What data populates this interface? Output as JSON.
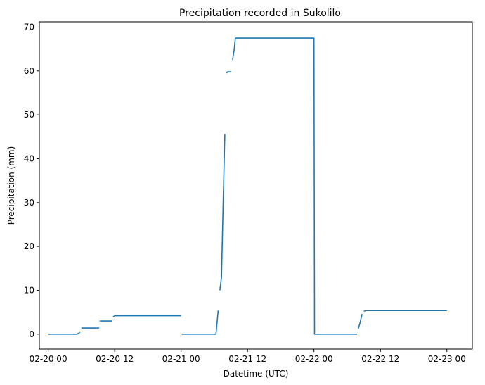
{
  "chart_data": {
    "type": "line",
    "title": "Precipitation recorded in Sukolilo",
    "xlabel": "Datetime (UTC)",
    "ylabel": "Precipitation (mm)",
    "x_tick_labels": [
      "02-20 00",
      "02-20 12",
      "02-21 00",
      "02-21 12",
      "02-22 00",
      "02-22 12",
      "02-23 00"
    ],
    "y_ticks": [
      0,
      10,
      20,
      30,
      40,
      50,
      60,
      70
    ],
    "xlim_hours": [
      -1.6,
      76.6
    ],
    "ylim": [
      -3.4,
      71.2
    ],
    "grid": false,
    "line_color": "#1f77b4",
    "series": [
      {
        "segments": [
          [
            [
              0,
              0
            ],
            [
              5.2,
              0
            ],
            [
              5.6,
              0.3
            ],
            [
              5.8,
              0.6
            ]
          ],
          [
            [
              6.0,
              1.4
            ],
            [
              9.2,
              1.4
            ]
          ],
          [
            [
              9.3,
              3.0
            ],
            [
              11.6,
              3.0
            ]
          ],
          [
            [
              11.7,
              3.9
            ],
            [
              12.0,
              4.2
            ],
            [
              24.0,
              4.2
            ]
          ],
          [
            [
              24.1,
              0
            ],
            [
              30.3,
              0
            ],
            [
              30.7,
              5.4
            ]
          ],
          [
            [
              31.0,
              10
            ],
            [
              31.3,
              13
            ],
            [
              31.6,
              30
            ],
            [
              31.9,
              45.6
            ]
          ],
          [
            [
              32.2,
              59.5
            ],
            [
              32.4,
              59.8
            ],
            [
              33.0,
              59.8
            ]
          ],
          [
            [
              33.3,
              62.5
            ],
            [
              33.6,
              65
            ],
            [
              33.8,
              67.5
            ],
            [
              48.0,
              67.5
            ],
            [
              48.1,
              0
            ],
            [
              55.8,
              0
            ]
          ],
          [
            [
              56.0,
              1.3
            ],
            [
              56.3,
              2.5
            ],
            [
              56.5,
              3.6
            ],
            [
              56.7,
              4.6
            ]
          ],
          [
            [
              57.0,
              5.2
            ],
            [
              57.3,
              5.4
            ],
            [
              72.0,
              5.4
            ]
          ]
        ]
      }
    ]
  }
}
